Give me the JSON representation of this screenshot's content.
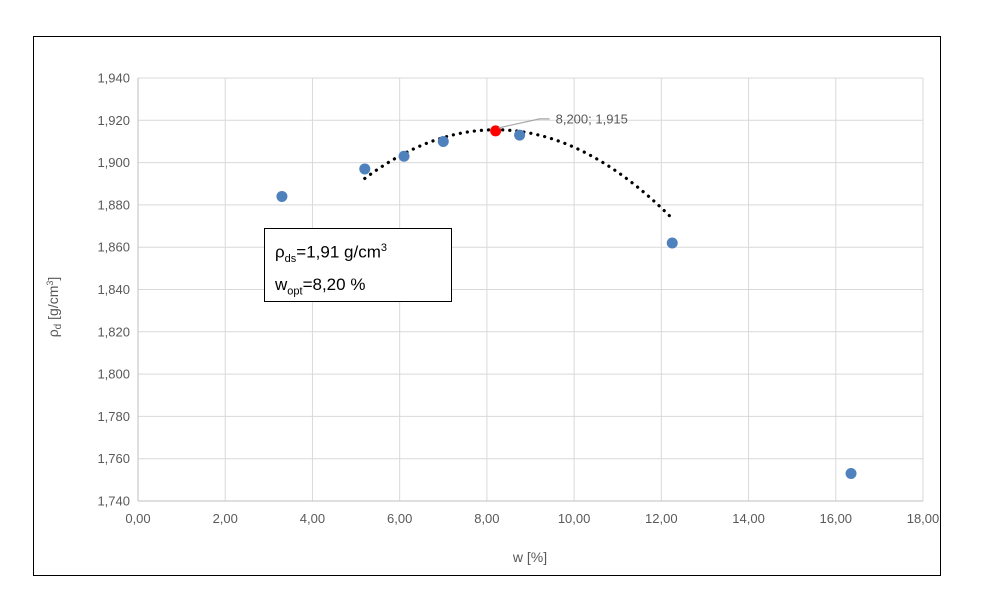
{
  "chart_data": {
    "type": "scatter",
    "xlabel": "w [%]",
    "ylabel": "ρd [g/cm3]",
    "ylabel_main": "ρ",
    "ylabel_sub": "d",
    "ylabel_rest": " [g/cm",
    "ylabel_sup": "3",
    "ylabel_close": "]",
    "xlim": [
      0,
      18
    ],
    "ylim": [
      1.74,
      1.94
    ],
    "x_ticks": [
      "0,00",
      "2,00",
      "4,00",
      "6,00",
      "8,00",
      "10,00",
      "12,00",
      "14,00",
      "16,00",
      "18,00"
    ],
    "y_ticks": [
      "1,740",
      "1,760",
      "1,780",
      "1,800",
      "1,820",
      "1,840",
      "1,860",
      "1,880",
      "1,900",
      "1,920",
      "1,940"
    ],
    "grid": true,
    "series": [
      {
        "values": [
          {
            "x": 3.3,
            "y": 1.884
          },
          {
            "x": 5.2,
            "y": 1.897
          },
          {
            "x": 6.1,
            "y": 1.903
          },
          {
            "x": 7.0,
            "y": 1.91
          },
          {
            "x": 8.75,
            "y": 1.913
          },
          {
            "x": 12.25,
            "y": 1.862
          },
          {
            "x": 16.35,
            "y": 1.753
          }
        ],
        "color": "#4f81bd"
      }
    ],
    "optimum_point": {
      "x": 8.2,
      "y": 1.915,
      "color": "#ff0000",
      "label": "8,200; 1,915"
    },
    "trendline": {
      "style": "dotted",
      "color": "#000000",
      "x_range": [
        5.2,
        12.25
      ],
      "coefficients": [
        1.74355,
        0.041945,
        -0.0025576
      ]
    },
    "info_box": {
      "line1_symbol": "ρ",
      "line1_sub": "ds",
      "line1_text": "=1,91 g/cm",
      "line1_sup": "3",
      "line2_symbol": "w",
      "line2_sub": "opt",
      "line2_text": "=8,20 %"
    }
  }
}
